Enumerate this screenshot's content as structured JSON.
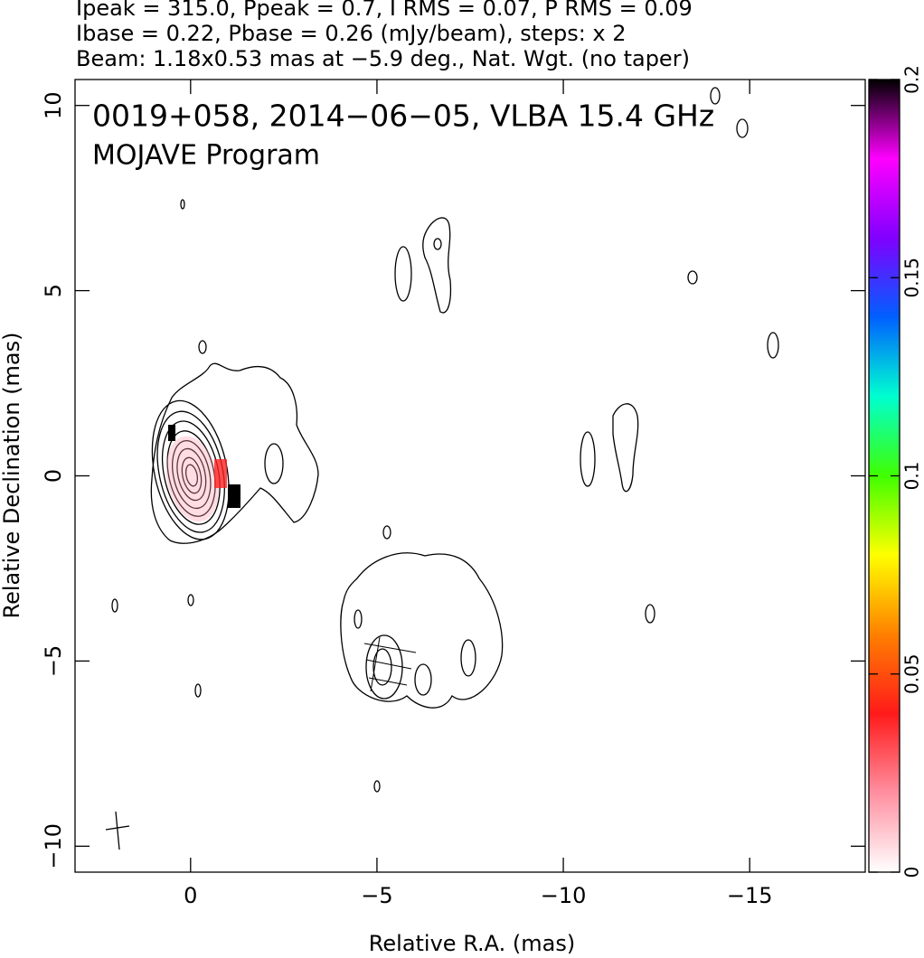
{
  "chart_data": {
    "type": "contour",
    "header": [
      "Ipeak = 315.0, Ppeak = 0.7, I RMS = 0.07, P RMS = 0.09",
      "Ibase = 0.22, Pbase = 0.26 (mJy/beam), steps: x 2",
      "Beam: 1.18x0.53 mas at −5.9 deg., Nat. Wgt. (no taper)"
    ],
    "annotations": [
      "0019+058, 2014−06−05, VLBA 15.4 GHz",
      "MOJAVE Program"
    ],
    "xlabel": "Relative R.A. (mas)",
    "ylabel": "Relative Declination (mas)",
    "xlim": [
      3.1,
      -18.1
    ],
    "xticks": [
      0,
      {
        "value": -5,
        "label": "−5"
      },
      {
        "value": -10,
        "label": "−10"
      },
      {
        "value": -15,
        "label": "−15"
      }
    ],
    "ylim": [
      -10.7,
      10.7
    ],
    "yticks": [
      {
        "value": -10,
        "label": "−10"
      },
      {
        "value": -5,
        "label": "−5"
      },
      0,
      5,
      10
    ],
    "clim": [
      0,
      0.2
    ],
    "cticks": [
      0,
      0.05,
      0.1,
      0.15,
      0.2
    ],
    "colormap": [
      "#ffffff",
      "#ff8fa0",
      "#ff1a1a",
      "#ff8000",
      "#ffff00",
      "#40ff00",
      "#00ffd0",
      "#0060ff",
      "#8000ff",
      "#ff00ff",
      "#000000"
    ]
  }
}
